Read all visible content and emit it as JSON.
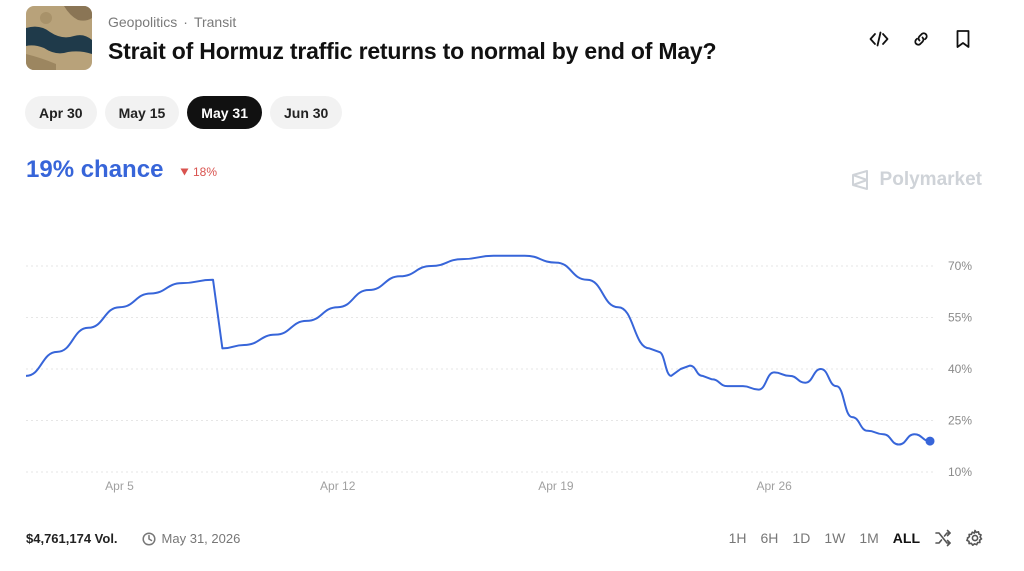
{
  "header": {
    "category": "Geopolitics",
    "separator": "·",
    "subcategory": "Transit",
    "title": "Strait of Hormuz traffic returns to normal by end of May?"
  },
  "actions": [
    {
      "name": "embed-code-icon"
    },
    {
      "name": "link-icon"
    },
    {
      "name": "bookmark-icon"
    }
  ],
  "date_tabs": [
    {
      "label": "Apr 30",
      "active": false
    },
    {
      "label": "May 15",
      "active": false
    },
    {
      "label": "May 31",
      "active": true
    },
    {
      "label": "Jun 30",
      "active": false
    }
  ],
  "summary": {
    "chance": "19% chance",
    "delta": "18%",
    "delta_direction": "down"
  },
  "brand": {
    "name": "Polymarket"
  },
  "chart_data": {
    "type": "line",
    "xlim": [
      0,
      29
    ],
    "x_ticks": [
      {
        "x": 3,
        "label": "Apr 5"
      },
      {
        "x": 10,
        "label": "Apr 12"
      },
      {
        "x": 17,
        "label": "Apr 19"
      },
      {
        "x": 24,
        "label": "Apr 26"
      }
    ],
    "ylim": [
      10,
      70
    ],
    "y_ticks": [
      {
        "y": 70,
        "label": "70%"
      },
      {
        "y": 55,
        "label": "55%"
      },
      {
        "y": 40,
        "label": "40%"
      },
      {
        "y": 25,
        "label": "25%"
      },
      {
        "y": 10,
        "label": "10%"
      }
    ],
    "grid": true,
    "line_color": "#3765d9",
    "series": [
      {
        "x": [
          0,
          1,
          2,
          3,
          4,
          5,
          6,
          6.3,
          7,
          8,
          9,
          10,
          11,
          12,
          13,
          14,
          15,
          16,
          17,
          18,
          19,
          20,
          20.3,
          20.7,
          21,
          21.3,
          21.7,
          22,
          22.5,
          23,
          23.5,
          24,
          24.5,
          25,
          25.5,
          26,
          26.5,
          27,
          27.5,
          28,
          28.5,
          29
        ],
        "y": [
          38,
          45,
          52,
          58,
          62,
          65,
          66,
          46,
          47,
          50,
          54,
          58,
          63,
          67,
          70,
          72,
          73,
          73,
          71,
          66,
          58,
          46,
          45,
          38,
          40,
          41,
          38,
          37,
          35,
          35,
          34,
          39,
          38,
          36,
          40,
          35,
          26,
          22,
          21,
          18,
          21,
          19
        ]
      }
    ]
  },
  "footer": {
    "volume": "$4,761,174 Vol.",
    "end_date": "May 31, 2026"
  },
  "ranges": [
    {
      "label": "1H",
      "active": false
    },
    {
      "label": "6H",
      "active": false
    },
    {
      "label": "1D",
      "active": false
    },
    {
      "label": "1W",
      "active": false
    },
    {
      "label": "1M",
      "active": false
    },
    {
      "label": "ALL",
      "active": true
    }
  ]
}
